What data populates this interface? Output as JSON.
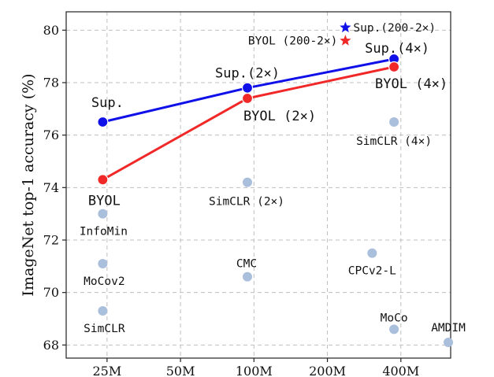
{
  "chart_data": {
    "type": "scatter",
    "title": "",
    "xlabel": "",
    "ylabel": "ImageNet top-1 accuracy (%)",
    "x_scale": "log",
    "xlim": [
      17,
      640
    ],
    "ylim": [
      67.5,
      80.7
    ],
    "grid": true,
    "x_ticks": [
      {
        "value": 25,
        "label": "25M"
      },
      {
        "value": 50,
        "label": "50M"
      },
      {
        "value": 100,
        "label": "100M"
      },
      {
        "value": 200,
        "label": "200M"
      },
      {
        "value": 400,
        "label": "400M"
      }
    ],
    "y_ticks": [
      {
        "value": 68,
        "label": "68"
      },
      {
        "value": 70,
        "label": "70"
      },
      {
        "value": 72,
        "label": "72"
      },
      {
        "value": 74,
        "label": "74"
      },
      {
        "value": 76,
        "label": "76"
      },
      {
        "value": 78,
        "label": "78"
      },
      {
        "value": 80,
        "label": "80"
      }
    ],
    "colors": {
      "sup": "#1010e8",
      "byol": "#f02828",
      "other": "#aabfdc"
    },
    "series": [
      {
        "key": "sup",
        "color": "#1010e8",
        "points": [
          {
            "x": 24,
            "y": 76.5,
            "label": "Sup."
          },
          {
            "x": 94,
            "y": 77.8,
            "label": "Sup.(2×)"
          },
          {
            "x": 375,
            "y": 78.9,
            "label": "Sup.(4×)"
          }
        ]
      },
      {
        "key": "byol",
        "color": "#f02828",
        "points": [
          {
            "x": 24,
            "y": 74.3,
            "label": "BYOL"
          },
          {
            "x": 94,
            "y": 77.4,
            "label": "BYOL (2×)"
          },
          {
            "x": 375,
            "y": 78.6,
            "label": "BYOL (4×)"
          }
        ]
      }
    ],
    "others": [
      {
        "x": 24,
        "y": 73.0,
        "label": "InfoMin"
      },
      {
        "x": 24,
        "y": 71.1,
        "label": "MoCov2"
      },
      {
        "x": 24,
        "y": 69.3,
        "label": "SimCLR"
      },
      {
        "x": 94,
        "y": 74.2,
        "label": "SimCLR (2×)"
      },
      {
        "x": 94,
        "y": 70.6,
        "label": "CMC"
      },
      {
        "x": 375,
        "y": 76.5,
        "label": "SimCLR (4×)"
      },
      {
        "x": 305,
        "y": 71.5,
        "label": "CPCv2-L"
      },
      {
        "x": 375,
        "y": 68.6,
        "label": "MoCo"
      },
      {
        "x": 626,
        "y": 68.1,
        "label": "AMDIM"
      }
    ],
    "stars": [
      {
        "x": 237,
        "y": 80.1,
        "label": "Sup.(200-2×)",
        "color": "#1010e8"
      },
      {
        "x": 237,
        "y": 79.6,
        "label": "BYOL (200-2×)",
        "color": "#f02828"
      }
    ]
  }
}
